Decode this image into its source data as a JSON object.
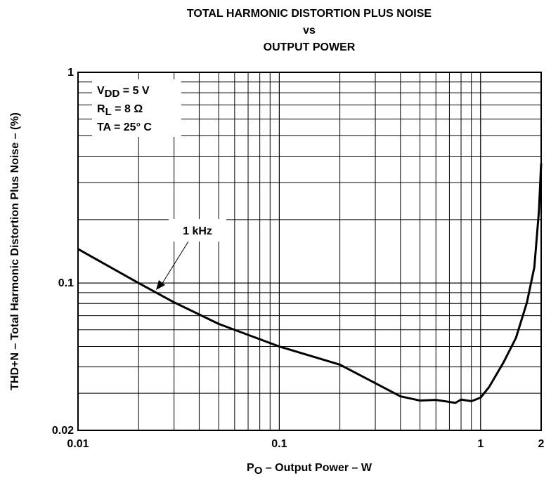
{
  "chart_data": {
    "type": "line",
    "title": [
      "TOTAL HARMONIC DISTORTION PLUS NOISE",
      "vs",
      "OUTPUT POWER"
    ],
    "x_label": [
      "P",
      "O",
      " – Output Power – W"
    ],
    "y_label": "THD+N – Total Harmonic Distortion Plus Noise – (%)",
    "x_log": true,
    "y_log": true,
    "grid": true,
    "xlim": [
      0.01,
      2
    ],
    "ylim": [
      0.02,
      1
    ],
    "xticks": [
      0.01,
      0.1,
      1,
      2
    ],
    "yticks": [
      0.02,
      0.1,
      1
    ],
    "conditions": [
      [
        "V",
        "DD",
        " = 5 V"
      ],
      [
        "R",
        "L",
        " = 8 Ω"
      ],
      [
        "TA = 25° C"
      ]
    ],
    "x": [
      0.01,
      0.02,
      0.03,
      0.05,
      0.1,
      0.2,
      0.4,
      0.5,
      0.6,
      0.75,
      0.8,
      0.9,
      1.0,
      1.1,
      1.3,
      1.5,
      1.7,
      1.85,
      1.95,
      2
    ],
    "series": [
      {
        "name": "1 kHz",
        "color": "#000000",
        "values": [
          0.145,
          0.1,
          0.081,
          0.064,
          0.05,
          0.041,
          0.029,
          0.0277,
          0.0279,
          0.027,
          0.028,
          0.0275,
          0.0286,
          0.032,
          0.042,
          0.055,
          0.081,
          0.119,
          0.22,
          0.37
        ]
      }
    ]
  }
}
